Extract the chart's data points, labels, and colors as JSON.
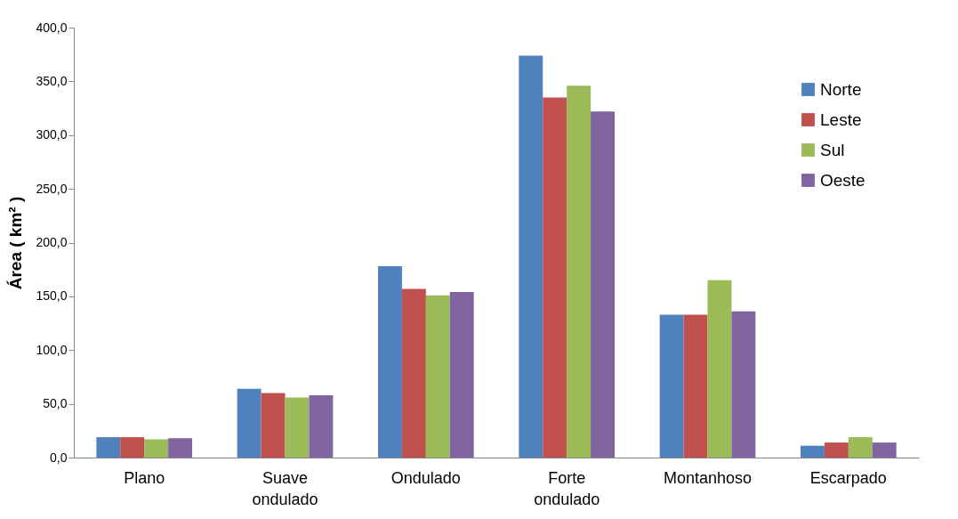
{
  "chart_data": {
    "type": "bar",
    "ylabel": "Área ( km² )",
    "categories": [
      "Plano",
      "Suave ondulado",
      "Ondulado",
      "Forte ondulado",
      "Montanhoso",
      "Escarpado"
    ],
    "series": [
      {
        "name": "Norte",
        "color": "#4f81bd",
        "values": [
          19,
          64,
          178,
          374,
          133,
          11
        ]
      },
      {
        "name": "Leste",
        "color": "#c0504d",
        "values": [
          19,
          60,
          157,
          335,
          133,
          14
        ]
      },
      {
        "name": "Sul",
        "color": "#9bbb59",
        "values": [
          17,
          56,
          151,
          346,
          165,
          19
        ]
      },
      {
        "name": "Oeste",
        "color": "#8064a2",
        "values": [
          18,
          58,
          154,
          322,
          136,
          14
        ]
      }
    ],
    "ylim": [
      0,
      400
    ],
    "yticks": [
      {
        "value": 0,
        "label": "0,0"
      },
      {
        "value": 50,
        "label": "50,0"
      },
      {
        "value": 100,
        "label": "100,0"
      },
      {
        "value": 150,
        "label": "150,0"
      },
      {
        "value": 200,
        "label": "200,0"
      },
      {
        "value": 250,
        "label": "250,0"
      },
      {
        "value": 300,
        "label": "300,0"
      },
      {
        "value": 350,
        "label": "350,0"
      },
      {
        "value": 400,
        "label": "400,0"
      }
    ],
    "grid": false,
    "legend": "top right"
  }
}
